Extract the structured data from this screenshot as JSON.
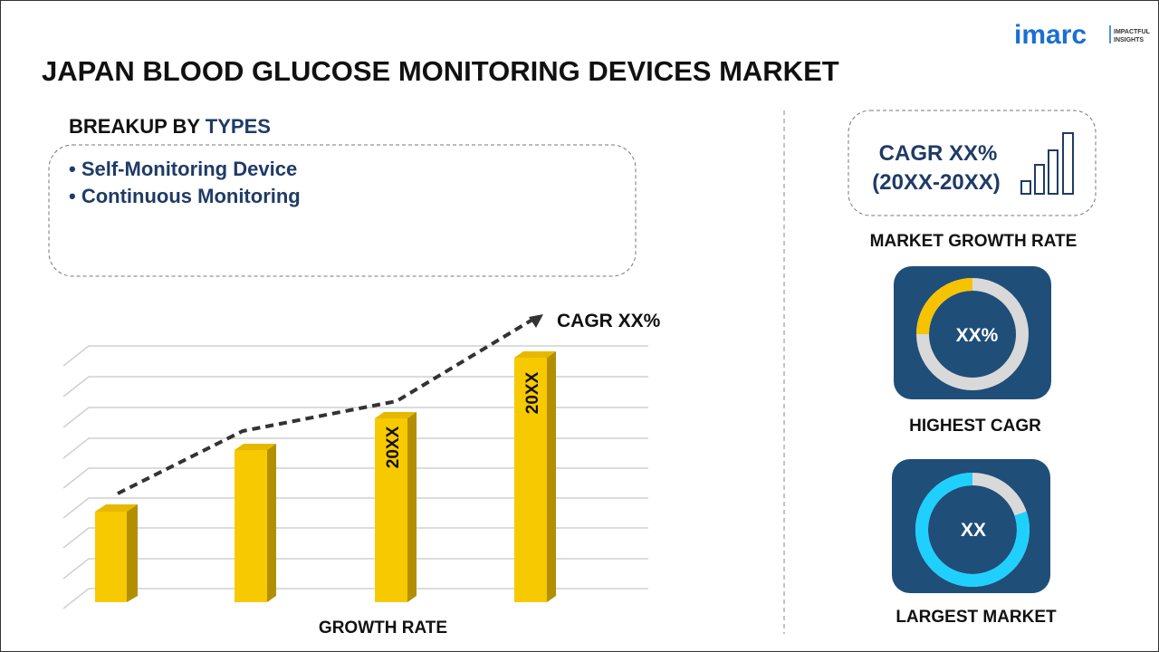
{
  "logo": {
    "brand": "imarc",
    "tagline": [
      "IMPACTFUL",
      "INSIGHTS"
    ]
  },
  "header": {
    "title": "JAPAN BLOOD GLUCOSE MONITORING DEVICES MARKET"
  },
  "breakup": {
    "heading": "BREAKUP BY",
    "heading_accent": "TYPES",
    "items": [
      "• Self-Monitoring Device",
      "• Continuous Monitoring"
    ]
  },
  "growth_chart": {
    "trend_label": "CAGR XX%",
    "bar_labels": [
      "20XX",
      "20XX"
    ],
    "axis_label": "GROWTH RATE"
  },
  "panels": {
    "growth": {
      "lines": [
        "CAGR XX%",
        "(20XX-20XX)"
      ],
      "caption": "MARKET GROWTH RATE"
    },
    "highest": {
      "value": "XX%",
      "caption": "HIGHEST CAGR"
    },
    "largest": {
      "value": "XX",
      "caption": "LARGEST MARKET"
    }
  }
}
